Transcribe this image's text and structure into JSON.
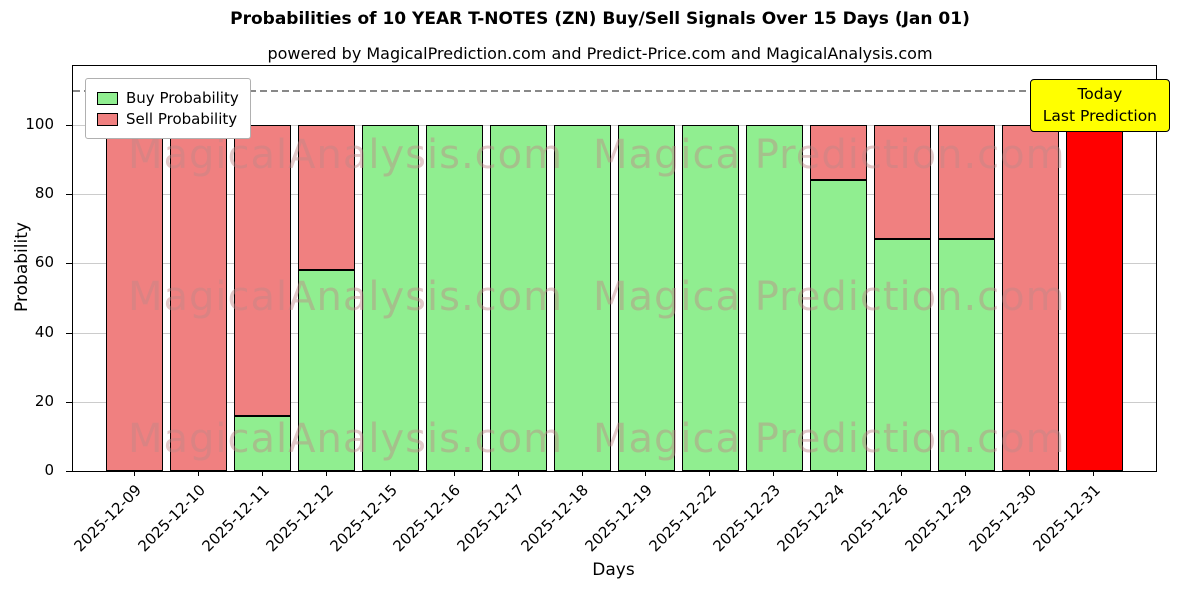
{
  "chart_data": {
    "type": "bar",
    "stacked": true,
    "title": "Probabilities of 10 YEAR T-NOTES (ZN) Buy/Sell Signals Over 15 Days (Jan 01)",
    "subtitle": "powered by MagicalPrediction.com and Predict-Price.com and MagicalAnalysis.com",
    "xlabel": "Days",
    "ylabel": "Probability",
    "ylim": [
      0,
      117
    ],
    "yticks": [
      0,
      20,
      40,
      60,
      80,
      100
    ],
    "grid": true,
    "threshold_line": {
      "y": 110,
      "style": "dashed",
      "color": "#888888"
    },
    "categories": [
      "2025-12-09",
      "2025-12-10",
      "2025-12-11",
      "2025-12-12",
      "2025-12-15",
      "2025-12-16",
      "2025-12-17",
      "2025-12-18",
      "2025-12-19",
      "2025-12-22",
      "2025-12-23",
      "2025-12-24",
      "2025-12-26",
      "2025-12-29",
      "2025-12-30",
      "2025-12-31"
    ],
    "series": [
      {
        "name": "Buy Probability",
        "color": "#90ee90",
        "values": [
          0,
          0,
          16,
          58,
          100,
          100,
          100,
          100,
          100,
          100,
          100,
          84,
          67,
          67,
          0,
          0
        ]
      },
      {
        "name": "Sell Probability",
        "color": "#f08080",
        "values": [
          100,
          100,
          84,
          42,
          0,
          0,
          0,
          0,
          0,
          0,
          0,
          16,
          33,
          33,
          100,
          100
        ]
      }
    ],
    "last_bar_color": "#ff0000",
    "bar_edge_color": "#000000",
    "legend": {
      "position": "upper left"
    },
    "annotation_box": {
      "lines": [
        "Today",
        "Last Prediction"
      ],
      "bg_color": "#ffff00",
      "border_color": "#000000"
    },
    "watermarks": {
      "left": "MagicalAnalysis.com",
      "right": "Magica Prediction.com"
    }
  }
}
